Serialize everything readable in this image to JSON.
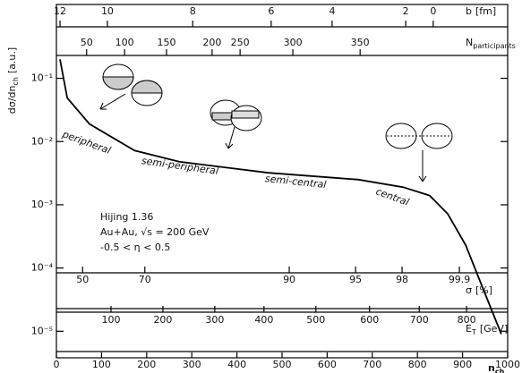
{
  "chart_data": {
    "type": "line",
    "x_label": {
      "main": "n",
      "sub": "ch"
    },
    "y_label": {
      "main": "dσ/dn",
      "sub": "ch",
      "unit": "[a.u.]"
    },
    "x": [
      8,
      24,
      73,
      173,
      272,
      470,
      669,
      768,
      827,
      867,
      907,
      946,
      986
    ],
    "series": [
      {
        "color": "#000000",
        "values": [
          0.2,
          0.049,
          0.019,
          0.0072,
          0.0048,
          0.0032,
          0.0025,
          0.0019,
          0.0014,
          0.00072,
          0.00023,
          4.6e-05,
          9e-06
        ]
      }
    ],
    "xlim": [
      0,
      1000
    ],
    "xticks": [
      0,
      100,
      200,
      300,
      400,
      500,
      600,
      700,
      800,
      900,
      1000
    ],
    "ylim": [
      3.8e-06,
      0.23
    ],
    "log_y": true,
    "yticks": [
      {
        "value": 0.1,
        "label": "10⁻¹"
      },
      {
        "value": 0.01,
        "label": "10⁻²"
      },
      {
        "value": 0.001,
        "label": "10⁻³"
      },
      {
        "value": 0.0001,
        "label": "10⁻⁴"
      },
      {
        "value": 1e-05,
        "label": "10⁻⁵"
      }
    ],
    "secondary_axes": [
      {
        "label": {
          "main": "b",
          "unit": "[fm]"
        },
        "ticks": [
          {
            "value": 12,
            "n_ch": 8
          },
          {
            "value": 10,
            "n_ch": 113
          },
          {
            "value": 8,
            "n_ch": 302
          },
          {
            "value": 6,
            "n_ch": 476
          },
          {
            "value": 4,
            "n_ch": 611
          },
          {
            "value": 2,
            "n_ch": 774
          },
          {
            "value": 0,
            "n_ch": 835
          }
        ]
      },
      {
        "label": {
          "main": "N",
          "sub": "participants"
        },
        "ticks": [
          {
            "value": 50,
            "n_ch": 67
          },
          {
            "value": 100,
            "n_ch": 151
          },
          {
            "value": 150,
            "n_ch": 244
          },
          {
            "value": 200,
            "n_ch": 345
          },
          {
            "value": 250,
            "n_ch": 407
          },
          {
            "value": 300,
            "n_ch": 524
          },
          {
            "value": 350,
            "n_ch": 673
          }
        ]
      },
      {
        "label": {
          "main": "σ",
          "unit": "[%]"
        },
        "ticks": [
          {
            "value": 50,
            "n_ch": 58
          },
          {
            "value": 70,
            "n_ch": 196
          },
          {
            "value": 90,
            "n_ch": 516
          },
          {
            "value": 95,
            "n_ch": 663
          },
          {
            "value": 98,
            "n_ch": 766
          },
          {
            "value": 99.9,
            "n_ch": 893
          }
        ]
      },
      {
        "label": {
          "main": "E",
          "sub": "T",
          "unit": "[GeV]"
        },
        "ticks": [
          {
            "value": 100,
            "n_ch": 121
          },
          {
            "value": 200,
            "n_ch": 236
          },
          {
            "value": 300,
            "n_ch": 351
          },
          {
            "value": 400,
            "n_ch": 460
          },
          {
            "value": 500,
            "n_ch": 575
          },
          {
            "value": 600,
            "n_ch": 694
          },
          {
            "value": 700,
            "n_ch": 804
          },
          {
            "value": 800,
            "n_ch": 909
          }
        ]
      }
    ],
    "annotations": [
      "peripheral",
      "semi-peripheral",
      "semi-central",
      "central"
    ],
    "info": [
      "Hijing 1.36",
      "Au+Au, √s = 200 GeV",
      "-0.5 < η < 0.5"
    ]
  }
}
